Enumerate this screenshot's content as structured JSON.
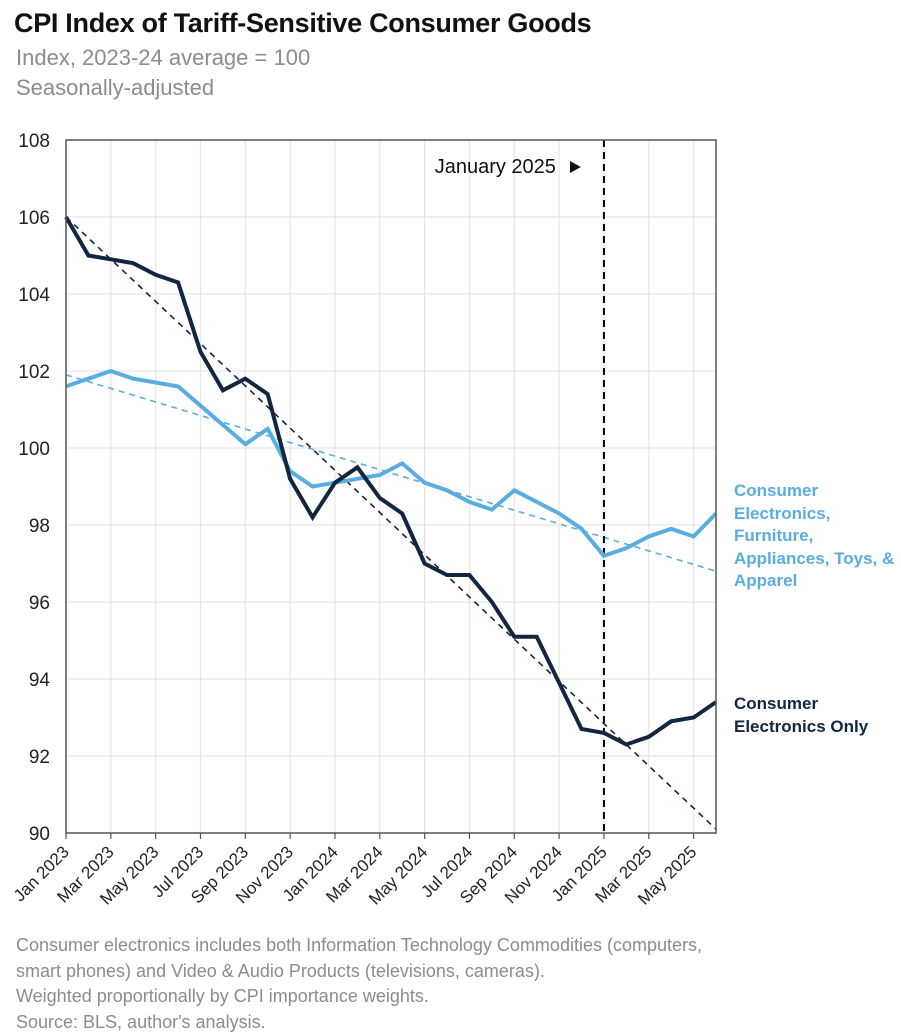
{
  "title": "CPI Index of Tariff-Sensitive Consumer Goods",
  "subtitle": "Index, 2023-24 average = 100",
  "subtitle2": "Seasonally-adjusted",
  "annotation": "January 2025",
  "footnote": [
    "Consumer electronics includes both Information Technology Commodities (computers,",
    "smart phones) and Video & Audio Products (televisions, cameras).",
    "Weighted proportionally by CPI importance weights.",
    "Source: BLS, author's analysis."
  ],
  "colors": {
    "broad": "#5aade0",
    "electronics": "#12263f",
    "grid": "#e6e6e6",
    "frame": "#555555"
  },
  "chart_data": {
    "type": "line",
    "title": "CPI Index of Tariff-Sensitive Consumer Goods",
    "ylim": [
      90,
      108
    ],
    "yticks": [
      90,
      92,
      94,
      96,
      98,
      100,
      102,
      104,
      106,
      108
    ],
    "categories": [
      "Jan 2023",
      "Feb 2023",
      "Mar 2023",
      "Apr 2023",
      "May 2023",
      "Jun 2023",
      "Jul 2023",
      "Aug 2023",
      "Sep 2023",
      "Oct 2023",
      "Nov 2023",
      "Dec 2023",
      "Jan 2024",
      "Feb 2024",
      "Mar 2024",
      "Apr 2024",
      "May 2024",
      "Jun 2024",
      "Jul 2024",
      "Aug 2024",
      "Sep 2024",
      "Oct 2024",
      "Nov 2024",
      "Dec 2024",
      "Jan 2025",
      "Feb 2025",
      "Mar 2025",
      "Apr 2025",
      "May 2025",
      "Jun 2025"
    ],
    "xtick_labels": [
      "Jan 2023",
      "Mar 2023",
      "May 2023",
      "Jul 2023",
      "Sep 2023",
      "Nov 2023",
      "Jan 2024",
      "Mar 2024",
      "May 2024",
      "Jul 2024",
      "Sep 2024",
      "Nov 2024",
      "Jan 2025",
      "Mar 2025",
      "May 2025"
    ],
    "vline_at": "Jan 2025",
    "series": [
      {
        "name": "Consumer Electronics, Furniture, Appliances, Toys, & Apparel",
        "legend_lines": [
          "Consumer",
          "Electronics,",
          "Furniture,",
          "Appliances, Toys, &",
          "Apparel"
        ],
        "values": [
          101.6,
          101.8,
          102.0,
          101.8,
          101.7,
          101.6,
          101.1,
          100.6,
          100.1,
          100.5,
          99.4,
          99.0,
          99.1,
          99.2,
          99.3,
          99.6,
          99.1,
          98.9,
          98.6,
          98.4,
          98.9,
          98.6,
          98.3,
          97.9,
          97.2,
          97.4,
          97.7,
          97.9,
          97.7,
          98.3
        ],
        "trend": [
          101.9,
          96.8
        ]
      },
      {
        "name": "Consumer Electronics Only",
        "legend_lines": [
          "Consumer",
          "Electronics Only"
        ],
        "values": [
          106.0,
          105.0,
          104.9,
          104.8,
          104.5,
          104.3,
          102.5,
          101.5,
          101.8,
          101.4,
          99.2,
          98.2,
          99.1,
          99.5,
          98.7,
          98.3,
          97.0,
          96.7,
          96.7,
          96.0,
          95.1,
          95.1,
          93.9,
          92.7,
          92.6,
          92.3,
          92.5,
          92.9,
          93.0,
          93.4
        ],
        "trend": [
          106.0,
          90.1
        ]
      }
    ]
  }
}
